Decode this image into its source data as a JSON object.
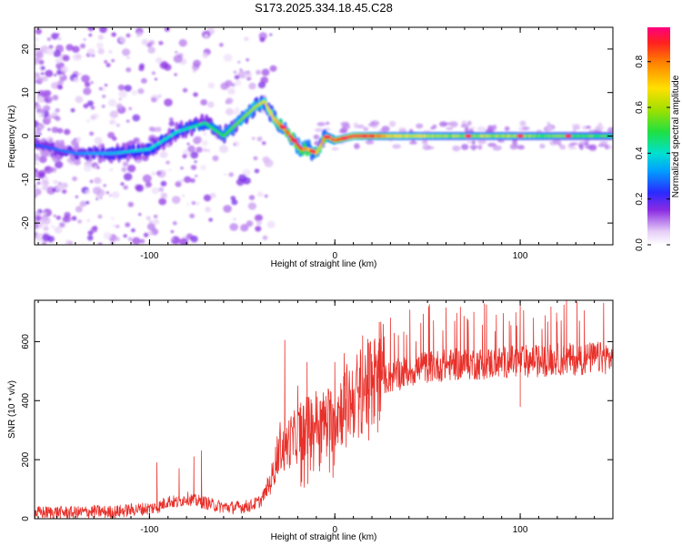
{
  "title": "S173.2025.334.18.45.C28",
  "chart_data": [
    {
      "type": "heatmap",
      "title": "S173.2025.334.18.45.C28",
      "xlabel": "Height of straight line (km)",
      "ylabel": "Frequency (Hz)",
      "xlim": [
        -162,
        150
      ],
      "ylim": [
        -25,
        25
      ],
      "xticks": [
        -100,
        0,
        100
      ],
      "yticks": [
        -20,
        -10,
        0,
        10,
        20
      ],
      "colorbar": {
        "label": "Normalized spectral amplitude",
        "range": [
          0.0,
          0.95
        ],
        "ticks": [
          "0.0",
          "0.2",
          "0.4",
          "0.6",
          "0.8"
        ]
      },
      "ridge": {
        "description_points_x": [
          -162,
          -140,
          -120,
          -100,
          -85,
          -70,
          -60,
          -50,
          -42,
          -38,
          -33,
          -28,
          -22,
          -18,
          -14,
          -10,
          -5,
          0,
          10,
          30,
          60,
          90,
          120,
          150
        ],
        "description_points_y": [
          -2,
          -4,
          -4,
          -3,
          1,
          3,
          0,
          4,
          7,
          8,
          4,
          2,
          -1,
          -3,
          -3,
          -4,
          0,
          -1,
          0,
          0,
          0,
          0,
          0,
          0
        ],
        "peak_amplitude": [
          0.25,
          0.3,
          0.35,
          0.4,
          0.4,
          0.45,
          0.5,
          0.55,
          0.6,
          0.65,
          0.7,
          0.8,
          0.9,
          0.85,
          0.8,
          0.7,
          0.8,
          0.9,
          0.95,
          0.7,
          0.6,
          0.6,
          0.55,
          0.5
        ]
      }
    },
    {
      "type": "line",
      "xlabel": "Height of straight line (km)",
      "ylabel": "SNR (10 * v/v)",
      "xlim": [
        -162,
        150
      ],
      "ylim": [
        0,
        740
      ],
      "xticks": [
        -100,
        0,
        100
      ],
      "yticks": [
        0,
        200,
        400,
        600
      ],
      "series": [
        {
          "name": "SNR",
          "color": "#e8302a",
          "x": [
            -162,
            -150,
            -140,
            -130,
            -120,
            -110,
            -100,
            -95,
            -90,
            -85,
            -80,
            -75,
            -70,
            -65,
            -60,
            -55,
            -50,
            -45,
            -40,
            -35,
            -33,
            -30,
            -27,
            -25,
            -22,
            -20,
            -18,
            -15,
            -12,
            -10,
            -8,
            -5,
            -2,
            0,
            3,
            6,
            10,
            15,
            20,
            25,
            30,
            40,
            50,
            60,
            70,
            80,
            90,
            100,
            110,
            120,
            130,
            140,
            150
          ],
          "values": [
            20,
            22,
            20,
            25,
            22,
            30,
            35,
            40,
            60,
            55,
            70,
            60,
            55,
            45,
            40,
            38,
            40,
            45,
            60,
            120,
            160,
            250,
            230,
            260,
            270,
            290,
            300,
            310,
            320,
            330,
            320,
            330,
            340,
            350,
            370,
            390,
            410,
            440,
            460,
            475,
            480,
            500,
            515,
            520,
            525,
            525,
            530,
            535,
            535,
            540,
            540,
            545,
            545
          ],
          "spikes": [
            {
              "x": -96,
              "y": 190
            },
            {
              "x": -84,
              "y": 170
            },
            {
              "x": -76,
              "y": 210
            },
            {
              "x": -72,
              "y": 230
            },
            {
              "x": -27,
              "y": 605
            },
            {
              "x": -20,
              "y": 450
            },
            {
              "x": -15,
              "y": 530
            },
            {
              "x": 0,
              "y": 530
            },
            {
              "x": 5,
              "y": 560
            },
            {
              "x": 15,
              "y": 620
            },
            {
              "x": 30,
              "y": 680
            },
            {
              "x": 60,
              "y": 715
            },
            {
              "x": 75,
              "y": 700
            },
            {
              "x": 100,
              "y": 720
            },
            {
              "x": 125,
              "y": 740
            },
            {
              "x": 145,
              "y": 730
            }
          ],
          "dips": [
            {
              "x": -1,
              "y": 140
            },
            {
              "x": -17,
              "y": 200
            },
            {
              "x": 100,
              "y": 380
            }
          ]
        }
      ]
    }
  ]
}
